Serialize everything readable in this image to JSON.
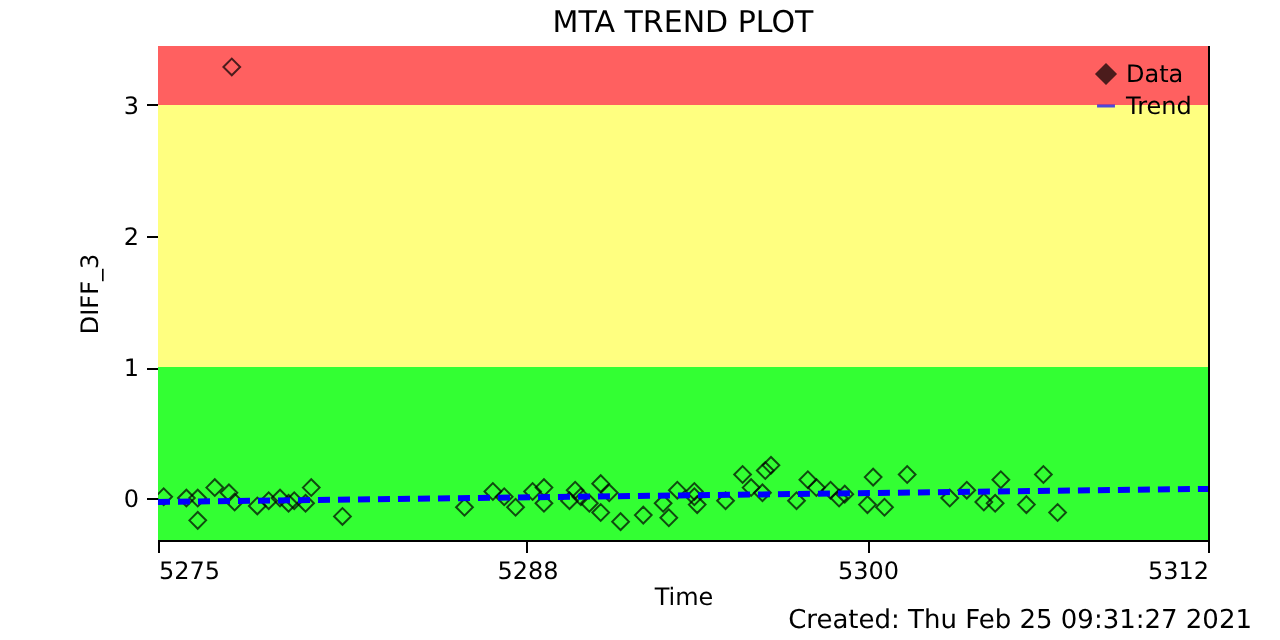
{
  "chart_data": {
    "type": "scatter",
    "title": "MTA TREND PLOT",
    "xlabel": "Time",
    "ylabel": "DIFF_3",
    "annotations": [
      "Created: Thu Feb 25 09:31:27 2021"
    ],
    "xlim": [
      5275,
      5312
    ],
    "xticks": [
      5275,
      5288,
      5300,
      5312
    ],
    "ylim": [
      -0.32,
      3.45
    ],
    "yticks": [
      0,
      1,
      2,
      3
    ],
    "grid": false,
    "legend": "top right",
    "bands": [
      {
        "axis": "y",
        "from": -0.32,
        "to": 1,
        "color": "#33ff33"
      },
      {
        "axis": "y",
        "from": 1,
        "to": 3,
        "color": "#ffff80"
      },
      {
        "axis": "y",
        "from": 3,
        "to": 3.45,
        "color": "#ff6060"
      }
    ],
    "series": [
      {
        "name": "Data",
        "marker": "diamond",
        "color": "#000000",
        "x": [
          5275.2,
          5276.0,
          5276.4,
          5276.4,
          5277.0,
          5277.5,
          5277.6,
          5277.7,
          5278.5,
          5278.9,
          5279.3,
          5279.6,
          5279.8,
          5280.2,
          5280.4,
          5281.5,
          5285.8,
          5286.8,
          5287.2,
          5287.6,
          5288.2,
          5288.6,
          5288.6,
          5289.5,
          5289.7,
          5289.9,
          5290.2,
          5290.6,
          5290.6,
          5290.9,
          5291.3,
          5292.1,
          5292.8,
          5293.0,
          5293.3,
          5293.9,
          5293.9,
          5294.0,
          5295.0,
          5295.6,
          5295.9,
          5296.3,
          5296.4,
          5296.6,
          5297.5,
          5297.9,
          5298.2,
          5298.7,
          5299.0,
          5299.2,
          5300.0,
          5300.2,
          5300.6,
          5301.4,
          5302.9,
          5303.5,
          5304.1,
          5304.5,
          5304.7,
          5305.6,
          5306.2,
          5306.7
        ],
        "values": [
          0.01,
          0.0,
          -0.17,
          0.0,
          0.08,
          0.04,
          3.29,
          -0.03,
          -0.06,
          -0.02,
          0.0,
          -0.04,
          -0.02,
          -0.04,
          0.08,
          -0.14,
          -0.07,
          0.05,
          0.01,
          -0.07,
          0.05,
          0.08,
          -0.04,
          -0.02,
          0.06,
          0.01,
          -0.04,
          -0.11,
          0.11,
          0.04,
          -0.18,
          -0.13,
          -0.04,
          -0.15,
          0.06,
          0.01,
          0.05,
          -0.05,
          -0.02,
          0.18,
          0.08,
          0.04,
          0.21,
          0.25,
          -0.02,
          0.14,
          0.08,
          0.06,
          0.0,
          0.03,
          -0.05,
          0.16,
          -0.07,
          0.18,
          0.0,
          0.06,
          -0.03,
          -0.04,
          0.14,
          -0.05,
          0.18,
          -0.11
        ]
      },
      {
        "name": "Trend",
        "type": "line",
        "line_style": "dashed",
        "color": "#0000ff",
        "x": [
          5275,
          5312
        ],
        "values": [
          -0.03,
          0.07
        ]
      }
    ]
  }
}
